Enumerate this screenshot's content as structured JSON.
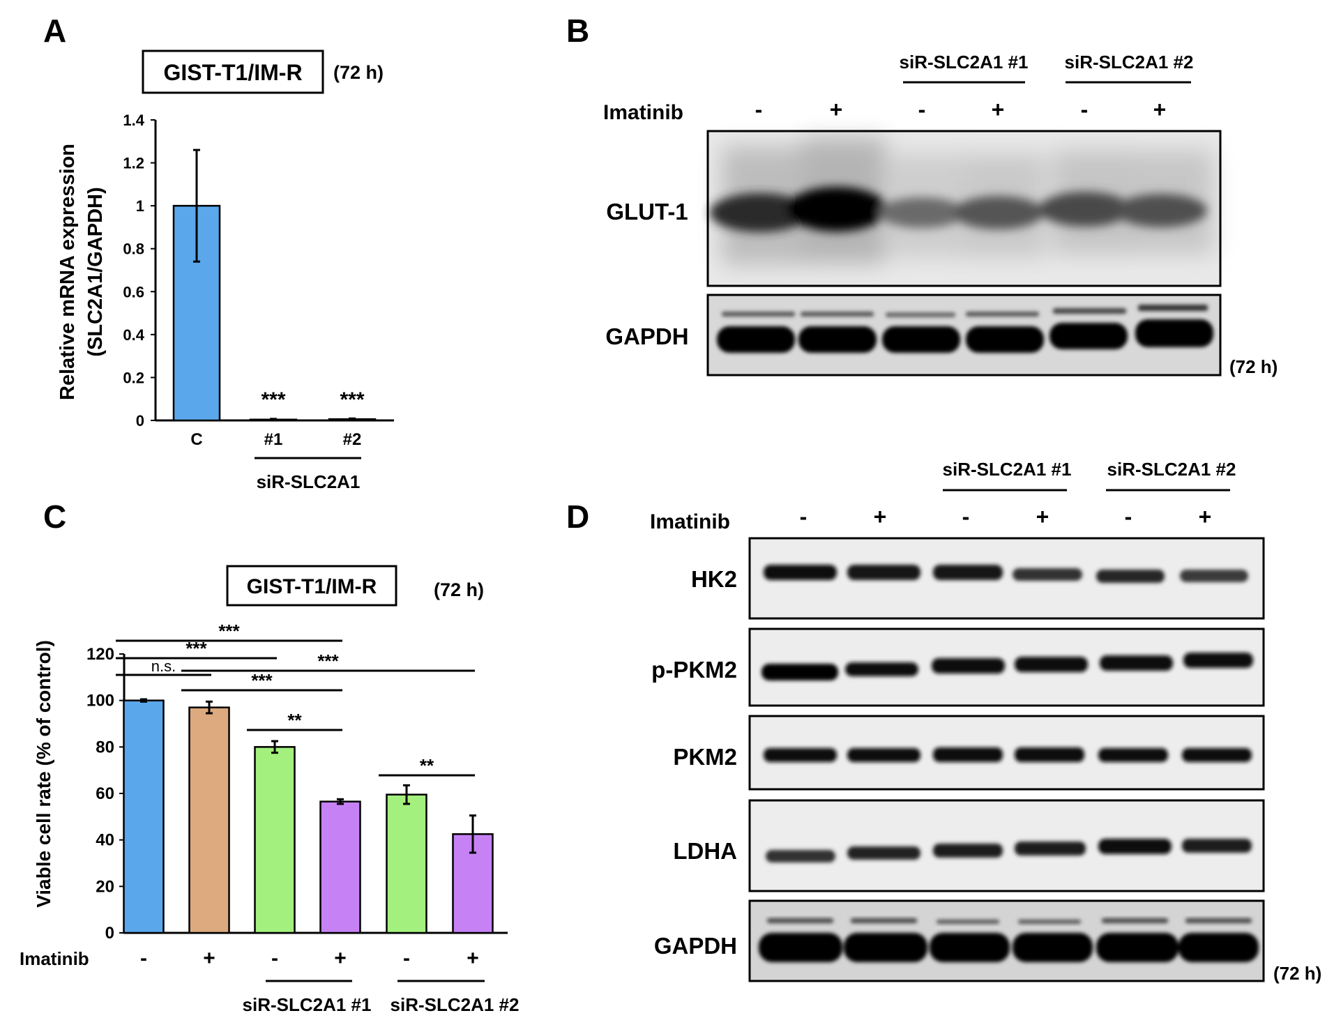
{
  "panel_letters": {
    "a": "A",
    "b": "B",
    "c": "C",
    "d": "D"
  },
  "panel_a": {
    "box_title": "GIST-T1/IM-R",
    "time_note": "(72 h)",
    "ylabel_line1": "Relative mRNA expression",
    "ylabel_line2": "(SLC2A1/GAPDH)",
    "group_label": "siR-SLC2A1"
  },
  "panel_b": {
    "group1_label": "siR-SLC2A1 #1",
    "group2_label": "siR-SLC2A1 #2",
    "treatment_label": "Imatinib",
    "signs": [
      "-",
      "+",
      "-",
      "+",
      "-",
      "+"
    ],
    "row_labels": [
      "GLUT-1",
      "GAPDH"
    ],
    "time_note": "(72 h)"
  },
  "panel_c": {
    "box_title": "GIST-T1/IM-R",
    "time_note": "(72 h)",
    "ylabel": "Viable cell rate (% of control)",
    "treatment_label": "Imatinib",
    "group1_label": "siR-SLC2A1 #1",
    "group2_label": "siR-SLC2A1 #2"
  },
  "panel_d": {
    "group1_label": "siR-SLC2A1 #1",
    "group2_label": "siR-SLC2A1 #2",
    "treatment_label": "Imatinib",
    "signs": [
      "-",
      "+",
      "-",
      "+",
      "-",
      "+"
    ],
    "row_labels": [
      "HK2",
      "p-PKM2",
      "PKM2",
      "LDHA",
      "GAPDH"
    ],
    "time_note": "(72 h)"
  },
  "chart_data": [
    {
      "panel": "A",
      "type": "bar",
      "title": "GIST-T1/IM-R",
      "ylabel": "Relative mRNA expression (SLC2A1/GAPDH)",
      "categories": [
        "C",
        "#1",
        "#2"
      ],
      "values": [
        1.0,
        0.004,
        0.006
      ],
      "errors": [
        0.26,
        0.003,
        0.003
      ],
      "significance": [
        "",
        "***",
        "***"
      ],
      "colors": [
        "#5aa7ec",
        "#5aa7ec",
        "#5aa7ec"
      ],
      "ylim": [
        0,
        1.4
      ],
      "yticks": [
        0,
        0.2,
        0.4,
        0.6,
        0.8,
        1,
        1.2,
        1.4
      ],
      "ytick_labels": [
        "0",
        "0.2",
        "0.4",
        "0.6",
        "0.8",
        "1",
        "1.2",
        "1.4"
      ]
    },
    {
      "panel": "C",
      "type": "bar",
      "title": "GIST-T1/IM-R",
      "ylabel": "Viable cell rate (% of control)",
      "categories": [
        "-",
        "+",
        "-",
        "+",
        "-",
        "+"
      ],
      "values": [
        100,
        97,
        80,
        56.5,
        59.5,
        42.5
      ],
      "errors": [
        0.5,
        2.5,
        2.5,
        1.0,
        4.0,
        8.0
      ],
      "colors": [
        "#5aa7ec",
        "#dcaa7e",
        "#a4f07e",
        "#c682f5",
        "#a4f07e",
        "#c682f5"
      ],
      "ylim": [
        0,
        120
      ],
      "yticks": [
        0,
        20,
        40,
        60,
        80,
        100,
        120
      ],
      "significance_brackets": [
        {
          "from": 0,
          "to": 1,
          "label": "n.s."
        },
        {
          "from": 0,
          "to": 2,
          "label": "***"
        },
        {
          "from": 0,
          "to": 3,
          "label": "***"
        },
        {
          "from": 1,
          "to": 3,
          "label": "***"
        },
        {
          "from": 1,
          "to": 5,
          "label": "***"
        },
        {
          "from": 2,
          "to": 3,
          "label": "**"
        },
        {
          "from": 4,
          "to": 5,
          "label": "**"
        }
      ]
    }
  ]
}
